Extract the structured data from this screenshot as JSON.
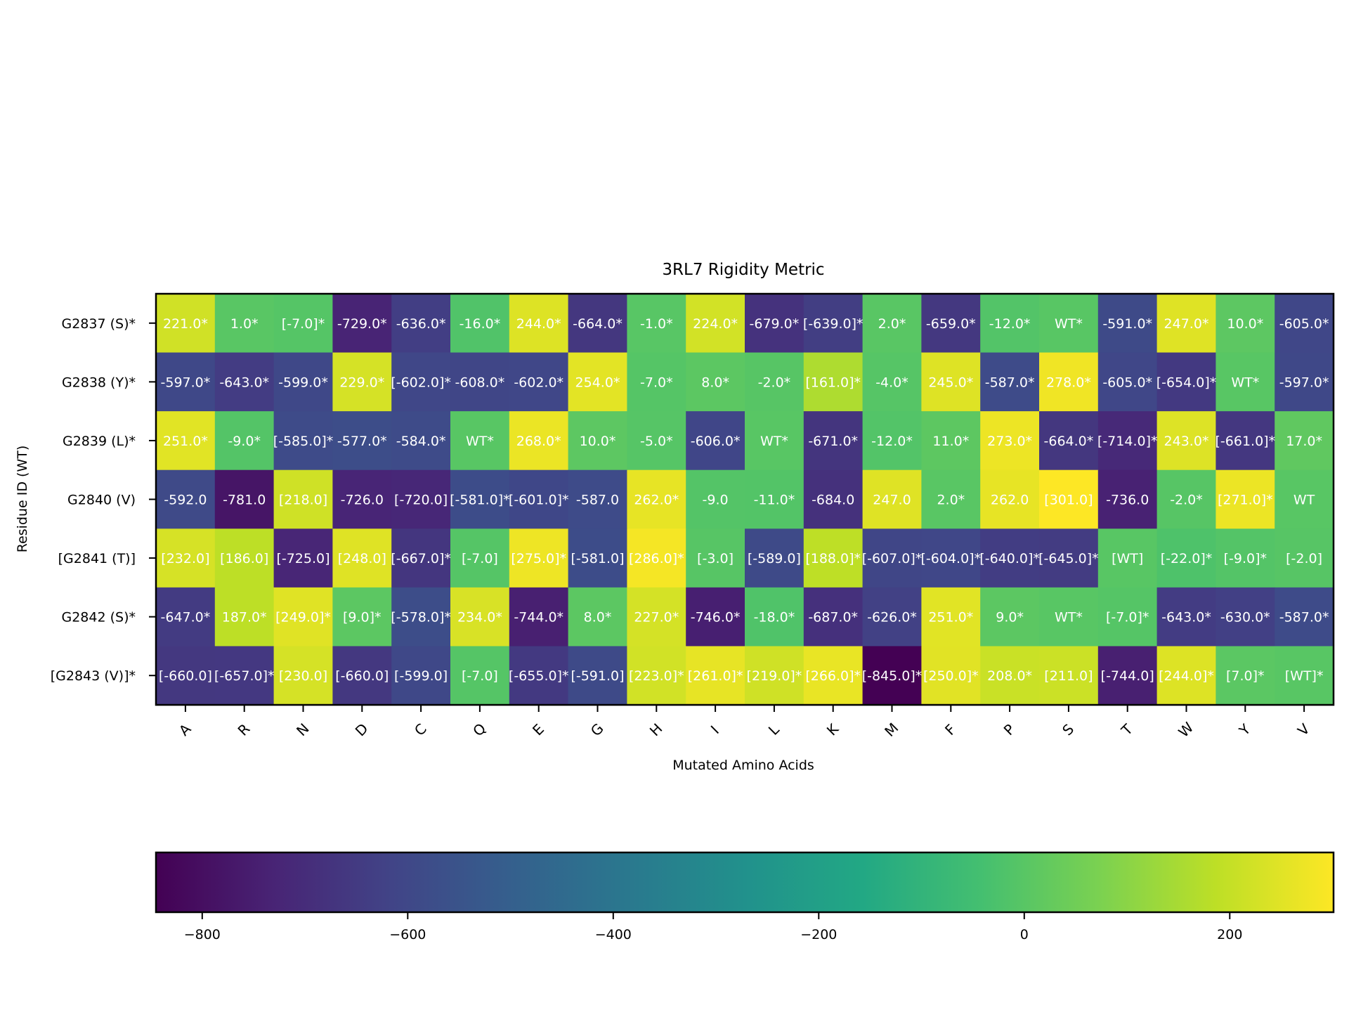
{
  "chart_data": {
    "type": "heatmap",
    "title": "3RL7 Rigidity Metric",
    "xlabel": "Mutated Amino Acids",
    "ylabel": "Residue ID (WT)",
    "x_categories": [
      "A",
      "R",
      "N",
      "D",
      "C",
      "Q",
      "E",
      "G",
      "H",
      "I",
      "L",
      "K",
      "M",
      "F",
      "P",
      "S",
      "T",
      "W",
      "Y",
      "V"
    ],
    "y_categories": [
      "G2837 (S)*",
      "G2838 (Y)*",
      "G2839 (L)*",
      "G2840 (V)",
      "[G2841 (T)]",
      "G2842 (S)*",
      "[G2843 (V)]*"
    ],
    "values": [
      [
        221,
        1,
        -7,
        -729,
        -636,
        -16,
        244,
        -664,
        -1,
        224,
        -679,
        -639,
        2,
        -659,
        -12,
        0,
        -591,
        247,
        10,
        -605
      ],
      [
        -597,
        -643,
        -599,
        229,
        -602,
        -608,
        -602,
        254,
        -7,
        8,
        -2,
        161,
        -4,
        245,
        -587,
        278,
        -605,
        -654,
        0,
        -597
      ],
      [
        251,
        -9,
        -585,
        -577,
        -584,
        0,
        268,
        10,
        -5,
        -606,
        0,
        -671,
        -12,
        11,
        273,
        -664,
        -714,
        243,
        -661,
        17
      ],
      [
        -592,
        -781,
        218,
        -726,
        -720,
        -581,
        -601,
        -587,
        262,
        -9,
        -11,
        -684,
        247,
        2,
        262,
        301,
        -736,
        -2,
        271,
        0
      ],
      [
        232,
        186,
        -725,
        248,
        -667,
        -7,
        275,
        -581,
        286,
        -3,
        -589,
        188,
        -607,
        -604,
        -640,
        -645,
        0,
        -22,
        -9,
        -2
      ],
      [
        -647,
        187,
        249,
        9,
        -578,
        234,
        -744,
        8,
        227,
        -746,
        -18,
        -687,
        -626,
        251,
        9,
        0,
        -7,
        -643,
        -630,
        -587
      ],
      [
        -660,
        -657,
        230,
        -660,
        -599,
        -7,
        -655,
        -591,
        223,
        261,
        219,
        266,
        -845,
        250,
        208,
        211,
        -744,
        244,
        7,
        0
      ]
    ],
    "cell_labels": [
      [
        "221.0*",
        "1.0*",
        "[-7.0]*",
        "-729.0*",
        "-636.0*",
        "-16.0*",
        "244.0*",
        "-664.0*",
        "-1.0*",
        "224.0*",
        "-679.0*",
        "[-639.0]*",
        "2.0*",
        "-659.0*",
        "-12.0*",
        "WT*",
        "-591.0*",
        "247.0*",
        "10.0*",
        "-605.0*"
      ],
      [
        "-597.0*",
        "-643.0*",
        "-599.0*",
        "229.0*",
        "[-602.0]*",
        "-608.0*",
        "-602.0*",
        "254.0*",
        "-7.0*",
        "8.0*",
        "-2.0*",
        "[161.0]*",
        "-4.0*",
        "245.0*",
        "-587.0*",
        "278.0*",
        "-605.0*",
        "[-654.0]*",
        "WT*",
        "-597.0*"
      ],
      [
        "251.0*",
        "-9.0*",
        "[-585.0]*",
        "-577.0*",
        "-584.0*",
        "WT*",
        "268.0*",
        "10.0*",
        "-5.0*",
        "-606.0*",
        "WT*",
        "-671.0*",
        "-12.0*",
        "11.0*",
        "273.0*",
        "-664.0*",
        "[-714.0]*",
        "243.0*",
        "[-661.0]*",
        "17.0*"
      ],
      [
        "-592.0",
        "-781.0",
        "[218.0]",
        "-726.0",
        "[-720.0]",
        "[-581.0]*",
        "[-601.0]*",
        "-587.0",
        "262.0*",
        "-9.0",
        "-11.0*",
        "-684.0",
        "247.0",
        "2.0*",
        "262.0",
        "[301.0]",
        "-736.0",
        "-2.0*",
        "[271.0]*",
        "WT"
      ],
      [
        "[232.0]",
        "[186.0]",
        "[-725.0]",
        "[248.0]",
        "[-667.0]*",
        "[-7.0]",
        "[275.0]*",
        "[-581.0]",
        "[286.0]*",
        "[-3.0]",
        "[-589.0]",
        "[188.0]*",
        "[-607.0]*",
        "[-604.0]*",
        "[-640.0]*",
        "[-645.0]*",
        "[WT]",
        "[-22.0]*",
        "[-9.0]*",
        "[-2.0]"
      ],
      [
        "-647.0*",
        "187.0*",
        "[249.0]*",
        "[9.0]*",
        "[-578.0]*",
        "234.0*",
        "-744.0*",
        "8.0*",
        "227.0*",
        "-746.0*",
        "-18.0*",
        "-687.0*",
        "-626.0*",
        "251.0*",
        "9.0*",
        "WT*",
        "[-7.0]*",
        "-643.0*",
        "-630.0*",
        "-587.0*"
      ],
      [
        "[-660.0]",
        "[-657.0]*",
        "[230.0]",
        "[-660.0]",
        "[-599.0]",
        "[-7.0]",
        "[-655.0]*",
        "[-591.0]",
        "[223.0]*",
        "[261.0]*",
        "[219.0]*",
        "[266.0]*",
        "[-845.0]*",
        "[250.0]*",
        "208.0*",
        "[211.0]",
        "[-744.0]",
        "[244.0]*",
        "[7.0]*",
        "[WT]*"
      ]
    ],
    "colormap": "viridis",
    "color_range": [
      -845,
      301
    ],
    "colorbar": {
      "orientation": "horizontal",
      "ticks": [
        -800,
        -600,
        -400,
        -200,
        0,
        200
      ]
    },
    "cell_text_color": "#ffffff",
    "grid": false
  }
}
